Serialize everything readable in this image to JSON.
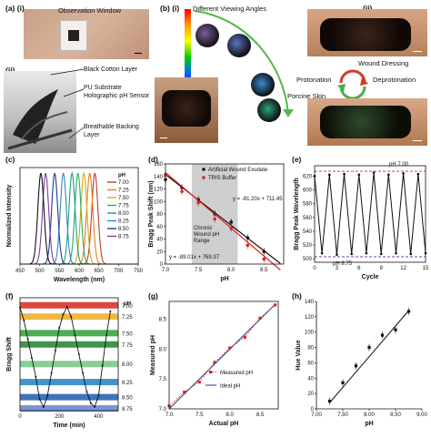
{
  "labels": {
    "a_i": "(a) (i)",
    "a_ii": "(ii)",
    "b_i": "(b) (i)",
    "b_ii": "(ii)",
    "c": "(c)",
    "d": "(d)",
    "e": "(e)",
    "f": "(f)",
    "g": "(g)",
    "h": "(h)"
  },
  "panel_a": {
    "observation_window": "Observation Window",
    "black_cotton": "Black Cotton Layer",
    "pu_substrate": "PU Substrate Holographic pH Sensor",
    "breathable_backing": "Breathable Backing Layer"
  },
  "panel_b": {
    "viewing_angles": "Different Viewing Angles",
    "wound_dressing": "Wound Dressing",
    "protonation": "Protonation",
    "deprotonation": "Deprotonation",
    "porcine_skin": "Porcine Skin"
  },
  "chart_data": [
    {
      "panel": "c",
      "type": "line",
      "xlabel": "Wavelength (nm)",
      "ylabel": "Normalized Intensity",
      "xlim": [
        450,
        750
      ],
      "xticks": [
        450,
        500,
        550,
        600,
        650,
        700,
        750
      ],
      "legend_title": "pH",
      "series": [
        {
          "name": "7.00",
          "peak": 640,
          "color": "#c0392b"
        },
        {
          "name": "7.25",
          "peak": 627,
          "color": "#e67e22"
        },
        {
          "name": "7.50",
          "peak": 612,
          "color": "#d4ac0d"
        },
        {
          "name": "7.75",
          "peak": 597,
          "color": "#27ae60"
        },
        {
          "name": "8.00",
          "peak": 582,
          "color": "#16a085"
        },
        {
          "name": "8.25",
          "peak": 560,
          "color": "#2e86c1"
        },
        {
          "name": "8.50",
          "peak": 538,
          "color": "#1f3a93"
        },
        {
          "name": "8.75",
          "peak": 515,
          "color": "#7d3c98"
        },
        {
          "name": "",
          "peak": 503,
          "color": "#111111"
        }
      ]
    },
    {
      "panel": "d",
      "type": "scatter",
      "xlabel": "pH",
      "ylabel": "Bragg Peak Shift (nm)",
      "xlim": [
        7.0,
        8.8
      ],
      "ylim": [
        0,
        160
      ],
      "xticks": [
        7.0,
        7.5,
        8.0,
        8.5
      ],
      "yticks": [
        0,
        20,
        40,
        60,
        80,
        100,
        120,
        140,
        160
      ],
      "shaded_range": [
        7.4,
        8.1
      ],
      "shaded_label": "Chronic Wound pH Range",
      "series": [
        {
          "name": "Artificial Wound Exudate",
          "color": "#111111",
          "x": [
            7.0,
            7.25,
            7.5,
            7.75,
            8.0,
            8.25,
            8.5
          ],
          "y": [
            135,
            122,
            103,
            80,
            67,
            42,
            20
          ],
          "fit": "y = -81.20x + 711.45"
        },
        {
          "name": "TRIS Buffer",
          "color": "#e02020",
          "x": [
            7.0,
            7.25,
            7.5,
            7.75,
            8.0,
            8.25,
            8.5
          ],
          "y": [
            143,
            116,
            98,
            72,
            57,
            30,
            8
          ],
          "fit": "y = -89.01x + 769.37"
        }
      ]
    },
    {
      "panel": "e",
      "type": "line",
      "xlabel": "Cycle",
      "ylabel": "Bragg Peak Wavelength",
      "xlim": [
        0,
        15
      ],
      "ylim": [
        495,
        635
      ],
      "xticks": [
        0,
        3,
        6,
        9,
        12,
        15
      ],
      "yticks": [
        500,
        520,
        540,
        560,
        580,
        600,
        620
      ],
      "annotations": [
        "pH 7.00",
        "pH 8.75"
      ],
      "x": [
        0,
        1,
        2,
        3,
        4,
        5,
        6,
        7,
        8,
        9,
        10,
        11,
        12,
        13,
        14,
        15
      ],
      "y": [
        620,
        508,
        622,
        506,
        623,
        507,
        622,
        508,
        625,
        507,
        622,
        508,
        624,
        507,
        623,
        508
      ]
    },
    {
      "panel": "f",
      "type": "line",
      "xlabel": "Time (min)",
      "ylabel": "Bragg Shift",
      "xlim": [
        0,
        500
      ],
      "xticks": [
        0,
        200,
        400
      ],
      "legend_title": "pH",
      "bands": [
        {
          "name": "7.00",
          "level": 140,
          "color": "#d9312a"
        },
        {
          "name": "7.25",
          "level": 125,
          "color": "#f0b030"
        },
        {
          "name": "7.50",
          "level": 103,
          "color": "#36a640"
        },
        {
          "name": "7.75",
          "level": 88,
          "color": "#2a8a3a"
        },
        {
          "name": "8.00",
          "level": 62,
          "color": "#7ac88a"
        },
        {
          "name": "8.25",
          "level": 38,
          "color": "#2f88c8"
        },
        {
          "name": "8.50",
          "level": 18,
          "color": "#2a65b5"
        },
        {
          "name": "8.75",
          "level": 3,
          "color": "#6a8ad0"
        }
      ],
      "x": [
        0,
        20,
        40,
        60,
        80,
        100,
        120,
        140,
        160,
        180,
        200,
        220,
        240,
        260,
        280,
        300,
        320,
        340,
        360,
        380,
        400,
        420,
        440,
        460
      ],
      "y": [
        137,
        120,
        95,
        70,
        45,
        15,
        5,
        20,
        50,
        80,
        110,
        128,
        138,
        125,
        100,
        75,
        50,
        25,
        10,
        5,
        20,
        60,
        100,
        132
      ]
    },
    {
      "panel": "g",
      "type": "scatter",
      "xlabel": "Actual pH",
      "ylabel": "Measured pH",
      "xlim": [
        7.0,
        8.8
      ],
      "ylim": [
        7.0,
        8.8
      ],
      "xticks": [
        7.0,
        7.5,
        8.0,
        8.5
      ],
      "yticks": [
        7.0,
        7.5,
        8.0,
        8.5
      ],
      "series": [
        {
          "name": "Measured pH",
          "color": "#e02020",
          "x": [
            7.0,
            7.25,
            7.5,
            7.75,
            8.0,
            8.25,
            8.5,
            8.75
          ],
          "y": [
            7.05,
            7.28,
            7.45,
            7.78,
            8.02,
            8.2,
            8.52,
            8.74
          ]
        },
        {
          "name": "Ideal pH",
          "color": "#1f3a93",
          "x": [
            7.0,
            8.75
          ],
          "y": [
            7.0,
            8.75
          ]
        }
      ]
    },
    {
      "panel": "h",
      "type": "scatter",
      "xlabel": "pH",
      "ylabel": "Hue Value",
      "xlim": [
        7.0,
        9.0
      ],
      "ylim": [
        0,
        140
      ],
      "xticks": [
        "7.00",
        "7.50",
        "8.00",
        "8.50",
        "9.00"
      ],
      "yticks": [
        0,
        20,
        40,
        60,
        80,
        100,
        120,
        140
      ],
      "x": [
        7.25,
        7.5,
        7.75,
        8.0,
        8.25,
        8.5,
        8.75
      ],
      "y": [
        10,
        34,
        56,
        80,
        96,
        103,
        127
      ]
    }
  ]
}
